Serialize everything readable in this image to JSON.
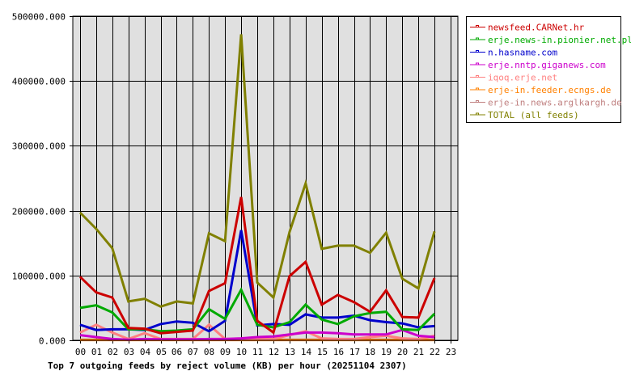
{
  "chart_data": {
    "type": "line",
    "title": "Top 7 outgoing feeds by reject volume (KB) per hour (20251104 2307)",
    "xlabel": "",
    "ylabel": "",
    "ylim": [
      0,
      500000
    ],
    "yticks": [
      "0.000",
      "100000.000",
      "200000.000",
      "300000.000",
      "400000.000",
      "500000.000"
    ],
    "grid": true,
    "legend_position": "right-top",
    "categories": [
      "00",
      "01",
      "02",
      "03",
      "04",
      "05",
      "06",
      "07",
      "08",
      "09",
      "10",
      "11",
      "12",
      "13",
      "14",
      "15",
      "16",
      "17",
      "18",
      "19",
      "20",
      "21",
      "22",
      "23"
    ],
    "series": [
      {
        "name": "newsfeed.CARNet.hr",
        "color": "#CC0000",
        "values": [
          98000,
          74000,
          66000,
          19000,
          18000,
          11000,
          13000,
          15000,
          76000,
          88000,
          221000,
          30000,
          12000,
          99000,
          121000,
          55000,
          70000,
          59000,
          44000,
          77000,
          36000,
          35000,
          96000,
          null
        ]
      },
      {
        "name": "erje.news-in.pionier.net.pl",
        "color": "#00AA00",
        "values": [
          50000,
          54000,
          43000,
          17000,
          17000,
          14000,
          15000,
          17000,
          48000,
          33000,
          78000,
          24000,
          20000,
          28000,
          55000,
          32000,
          25000,
          37000,
          42000,
          44000,
          17000,
          16000,
          41000,
          null
        ]
      },
      {
        "name": "n.hasname.com",
        "color": "#0000CC",
        "values": [
          24000,
          16000,
          17000,
          17000,
          16000,
          25000,
          29000,
          27000,
          14000,
          30000,
          170000,
          23000,
          25000,
          24000,
          40000,
          35000,
          35000,
          38000,
          31000,
          28000,
          26000,
          20000,
          22000,
          null
        ]
      },
      {
        "name": "erje.nntp.giganews.com",
        "color": "#CC00CC",
        "values": [
          8000,
          5000,
          2000,
          1000,
          2000,
          1500,
          1500,
          1500,
          2000,
          2000,
          3000,
          5000,
          6000,
          9000,
          12000,
          12000,
          11000,
          9000,
          9000,
          9000,
          16000,
          7000,
          5000,
          null
        ]
      },
      {
        "name": "iqoq.erje.net",
        "color": "#FF8080",
        "values": [
          12000,
          24000,
          12000,
          2000,
          11000,
          2000,
          2000,
          2000,
          24000,
          2000,
          2000,
          2000,
          2000,
          8000,
          14000,
          3000,
          2000,
          2000,
          5000,
          7000,
          3000,
          2000,
          7000,
          null
        ]
      },
      {
        "name": "erje-in.feeder.ecngs.de",
        "color": "#FF8000",
        "values": [
          500,
          500,
          500,
          500,
          500,
          500,
          500,
          500,
          500,
          500,
          500,
          500,
          500,
          500,
          500,
          500,
          500,
          500,
          500,
          500,
          500,
          500,
          500,
          null
        ]
      },
      {
        "name": "erje-in.news.arglkargh.de",
        "color": "#C08080",
        "values": [
          1000,
          1000,
          1000,
          1000,
          1000,
          1000,
          1000,
          1000,
          1000,
          1000,
          1000,
          1000,
          1000,
          1000,
          1000,
          1000,
          1000,
          1000,
          1000,
          1000,
          1000,
          1000,
          1000,
          null
        ]
      },
      {
        "name": "TOTAL (all feeds)",
        "color": "#808000",
        "values": [
          197000,
          172000,
          142000,
          60000,
          64000,
          52000,
          60000,
          57000,
          165000,
          153000,
          472000,
          89000,
          66000,
          167000,
          242000,
          141000,
          146000,
          146000,
          135000,
          166000,
          95000,
          80000,
          168000,
          null
        ]
      }
    ]
  }
}
